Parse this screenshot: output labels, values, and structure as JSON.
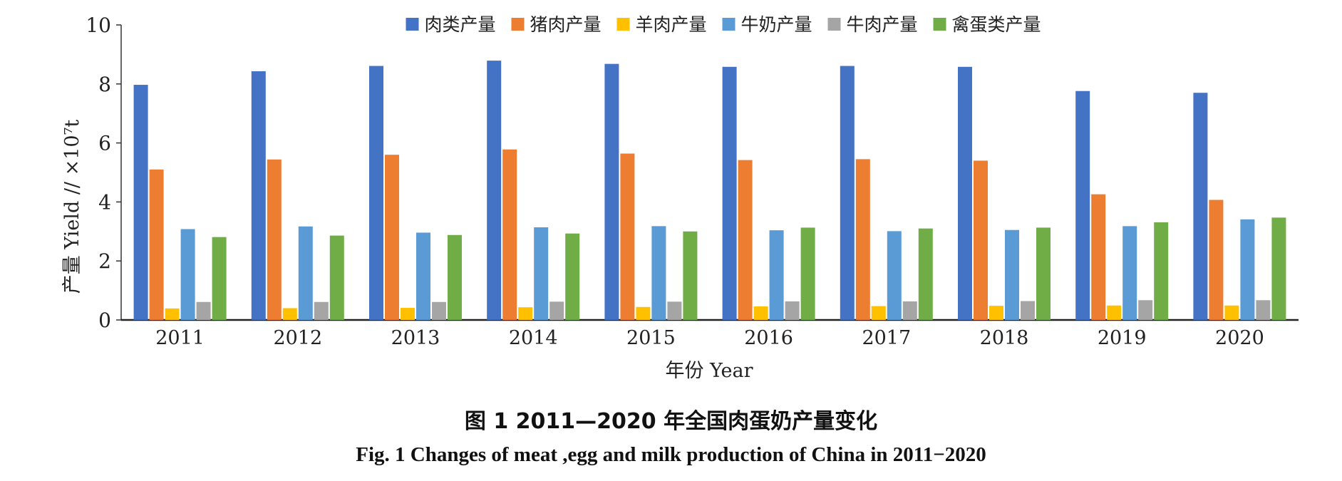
{
  "chart_data": {
    "type": "bar",
    "title": "",
    "xlabel": "年份 Year",
    "ylabel": "产量 Yield // ×10⁷t",
    "ylim": [
      0,
      10
    ],
    "yticks": [
      "0",
      "2",
      "4",
      "6",
      "8",
      "10"
    ],
    "grid": false,
    "legend_position": "top",
    "categories": [
      "2011",
      "2012",
      "2013",
      "2014",
      "2015",
      "2016",
      "2017",
      "2018",
      "2019",
      "2020"
    ],
    "series": [
      {
        "name": "肉类产量",
        "color": "#4472C4",
        "values": [
          7.97,
          8.43,
          8.61,
          8.79,
          8.68,
          8.58,
          8.61,
          8.58,
          7.76,
          7.7
        ]
      },
      {
        "name": "猪肉产量",
        "color": "#ED7D31",
        "values": [
          5.1,
          5.44,
          5.6,
          5.78,
          5.64,
          5.42,
          5.45,
          5.4,
          4.26,
          4.07
        ]
      },
      {
        "name": "羊肉产量",
        "color": "#FFC000",
        "values": [
          0.39,
          0.4,
          0.41,
          0.43,
          0.44,
          0.46,
          0.47,
          0.48,
          0.49,
          0.49
        ]
      },
      {
        "name": "牛奶产量",
        "color": "#5B9BD5",
        "values": [
          3.08,
          3.17,
          2.96,
          3.14,
          3.18,
          3.04,
          3.01,
          3.05,
          3.18,
          3.41
        ]
      },
      {
        "name": "牛肉产量",
        "color": "#A5A5A5",
        "values": [
          0.61,
          0.61,
          0.61,
          0.62,
          0.62,
          0.63,
          0.63,
          0.64,
          0.67,
          0.67
        ]
      },
      {
        "name": "禽蛋类产量",
        "color": "#70AD47",
        "values": [
          2.81,
          2.86,
          2.88,
          2.93,
          3.0,
          3.13,
          3.1,
          3.13,
          3.31,
          3.47
        ]
      }
    ]
  },
  "captions": {
    "cn": "图 1   2011—2020 年全国肉蛋奶产量变化",
    "en": "Fig. 1   Changes of meat ,egg and milk production of China in 2011−2020"
  }
}
